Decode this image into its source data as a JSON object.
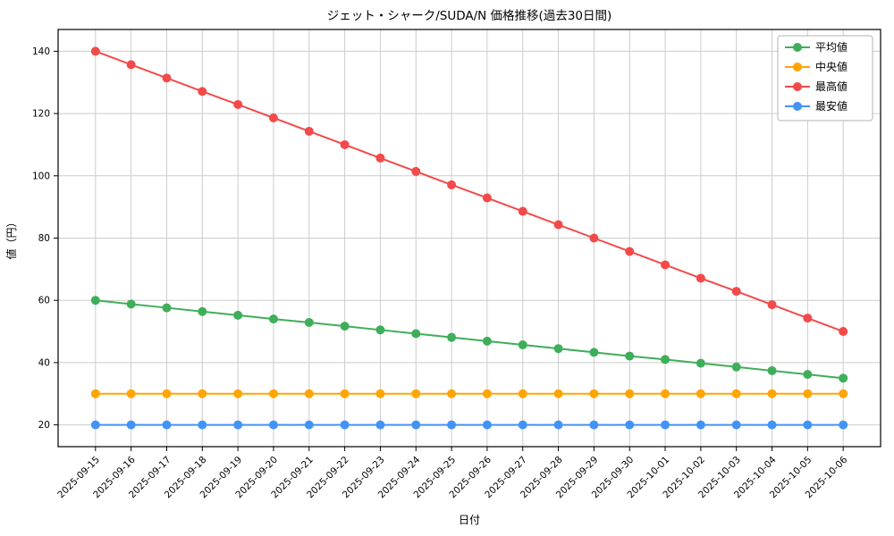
{
  "figure": {
    "title": "ジェット・シャーク/SUDA/N 価格推移(過去30日間)",
    "xlabel": "日付",
    "ylabel": "値（円）"
  },
  "chart_data": {
    "type": "line",
    "title": "ジェット・シャーク/SUDA/N 価格推移(過去30日間)",
    "xlabel": "日付",
    "ylabel": "値（円）",
    "x": [
      "2025-09-15",
      "2025-09-16",
      "2025-09-17",
      "2025-09-18",
      "2025-09-19",
      "2025-09-20",
      "2025-09-21",
      "2025-09-22",
      "2025-09-23",
      "2025-09-24",
      "2025-09-25",
      "2025-09-26",
      "2025-09-27",
      "2025-09-28",
      "2025-09-29",
      "2025-09-30",
      "2025-10-01",
      "2025-10-02",
      "2025-10-03",
      "2025-10-04",
      "2025-10-05",
      "2025-10-06"
    ],
    "series": [
      {
        "name": "平均値",
        "color": "#3fae5a",
        "values": [
          60.0,
          58.8,
          57.6,
          56.4,
          55.2,
          54.0,
          52.9,
          51.7,
          50.5,
          49.3,
          48.1,
          46.9,
          45.7,
          44.5,
          43.3,
          42.1,
          41.0,
          39.8,
          38.6,
          37.4,
          36.2,
          35.0
        ]
      },
      {
        "name": "中央値",
        "color": "#ffa500",
        "values": [
          30,
          30,
          30,
          30,
          30,
          30,
          30,
          30,
          30,
          30,
          30,
          30,
          30,
          30,
          30,
          30,
          30,
          30,
          30,
          30,
          30,
          30
        ]
      },
      {
        "name": "最高値",
        "color": "#f24a4a",
        "values": [
          140.0,
          135.7,
          131.4,
          127.1,
          122.9,
          118.6,
          114.3,
          110.0,
          105.7,
          101.4,
          97.1,
          92.9,
          88.6,
          84.3,
          80.0,
          75.7,
          71.4,
          67.1,
          62.9,
          58.6,
          54.3,
          50.0
        ]
      },
      {
        "name": "最安値",
        "color": "#4293f5",
        "values": [
          20,
          20,
          20,
          20,
          20,
          20,
          20,
          20,
          20,
          20,
          20,
          20,
          20,
          20,
          20,
          20,
          20,
          20,
          20,
          20,
          20,
          20
        ]
      }
    ],
    "yticks": [
      20,
      40,
      60,
      80,
      100,
      120,
      140
    ],
    "ylim": [
      13,
      147
    ],
    "grid": true,
    "grid_color": "#cccccc",
    "axis_color": "#000000",
    "legend_position": "upper right",
    "legend_border_color": "#b3b3b3",
    "legend_labels": [
      "平均値",
      "中央値",
      "最高値",
      "最安値"
    ]
  }
}
